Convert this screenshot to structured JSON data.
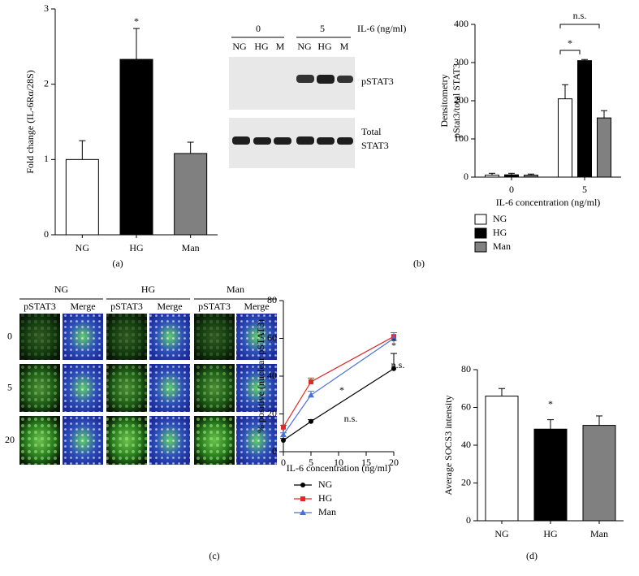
{
  "chart_data": [
    {
      "type": "bar",
      "label": "(a)",
      "ylabel": "Fold change (IL-6Rα/28S)",
      "categories": [
        "NG",
        "HG",
        "Man"
      ],
      "values": [
        1.0,
        2.33,
        1.08
      ],
      "errors": [
        0.25,
        0.41,
        0.15
      ],
      "colors": [
        "#ffffff",
        "#000000",
        "#808080"
      ],
      "ylim": [
        0,
        3
      ],
      "yticks": [
        0,
        1,
        2,
        3
      ],
      "annotations": [
        "*"
      ]
    },
    {
      "type": "grouped-bar",
      "label": "(b)",
      "ylabel": [
        "Densitometry",
        "pStat3/total STAT3"
      ],
      "xlabel": "IL-6 concentration (ng/ml)",
      "categories": [
        "0",
        "5"
      ],
      "series": [
        {
          "name": "NG",
          "color": "#ffffff",
          "values": [
            5,
            205
          ],
          "errors": [
            5,
            37
          ]
        },
        {
          "name": "HG",
          "color": "#000000",
          "values": [
            6,
            305
          ],
          "errors": [
            4,
            3
          ]
        },
        {
          "name": "Man",
          "color": "#808080",
          "values": [
            5,
            155
          ],
          "errors": [
            3,
            19
          ]
        }
      ],
      "ylim": [
        0,
        400
      ],
      "yticks": [
        0,
        100,
        200,
        300,
        400
      ],
      "annotations": [
        "*",
        "n.s."
      ]
    },
    {
      "type": "line",
      "label": "(c)",
      "ylabel": "% positive (nuclear pSTAT3)",
      "xlabel": "IL-6 concentration (ng/ml)",
      "x": [
        0,
        5,
        20
      ],
      "series": [
        {
          "name": "NG",
          "color": "#000000",
          "marker": "circle",
          "values": [
            6,
            16,
            44
          ],
          "errors": [
            1,
            1,
            8
          ]
        },
        {
          "name": "HG",
          "color": "#e02828",
          "marker": "square",
          "values": [
            13,
            37,
            61
          ],
          "errors": [
            1,
            2,
            2
          ]
        },
        {
          "name": "Man",
          "color": "#4a6fd8",
          "marker": "triangle",
          "values": [
            9,
            30,
            60
          ],
          "errors": [
            1,
            2,
            3
          ]
        }
      ],
      "xlim": [
        0,
        20
      ],
      "xticks": [
        0,
        5,
        10,
        15,
        20
      ],
      "ylim": [
        0,
        80
      ],
      "yticks": [
        0,
        20,
        40,
        60,
        80
      ],
      "annotations": [
        "*",
        "n.s.",
        "*",
        "*",
        "n.s."
      ]
    },
    {
      "type": "bar",
      "label": "(d)",
      "ylabel": "Average SOCS3 intensity",
      "categories": [
        "NG",
        "HG",
        "Man"
      ],
      "values": [
        66,
        48.5,
        50.5
      ],
      "errors": [
        4,
        5,
        5
      ],
      "colors": [
        "#ffffff",
        "#000000",
        "#808080"
      ],
      "ylim": [
        0,
        80
      ],
      "yticks": [
        0,
        20,
        40,
        60,
        80
      ],
      "annotations": [
        "*"
      ]
    }
  ],
  "blot": {
    "doses": [
      "0",
      "5"
    ],
    "unit": "IL-6 (ng/ml)",
    "lanes": [
      "NG",
      "HG",
      "M",
      "NG",
      "HG",
      "M"
    ],
    "rows": [
      [
        "pSTAT3"
      ],
      [
        "Total",
        "STAT3"
      ]
    ]
  },
  "micrographs": {
    "groups": [
      "NG",
      "HG",
      "Man"
    ],
    "channels": [
      "pSTAT3",
      "Merge"
    ],
    "doses": [
      "0",
      "5",
      "20"
    ]
  }
}
